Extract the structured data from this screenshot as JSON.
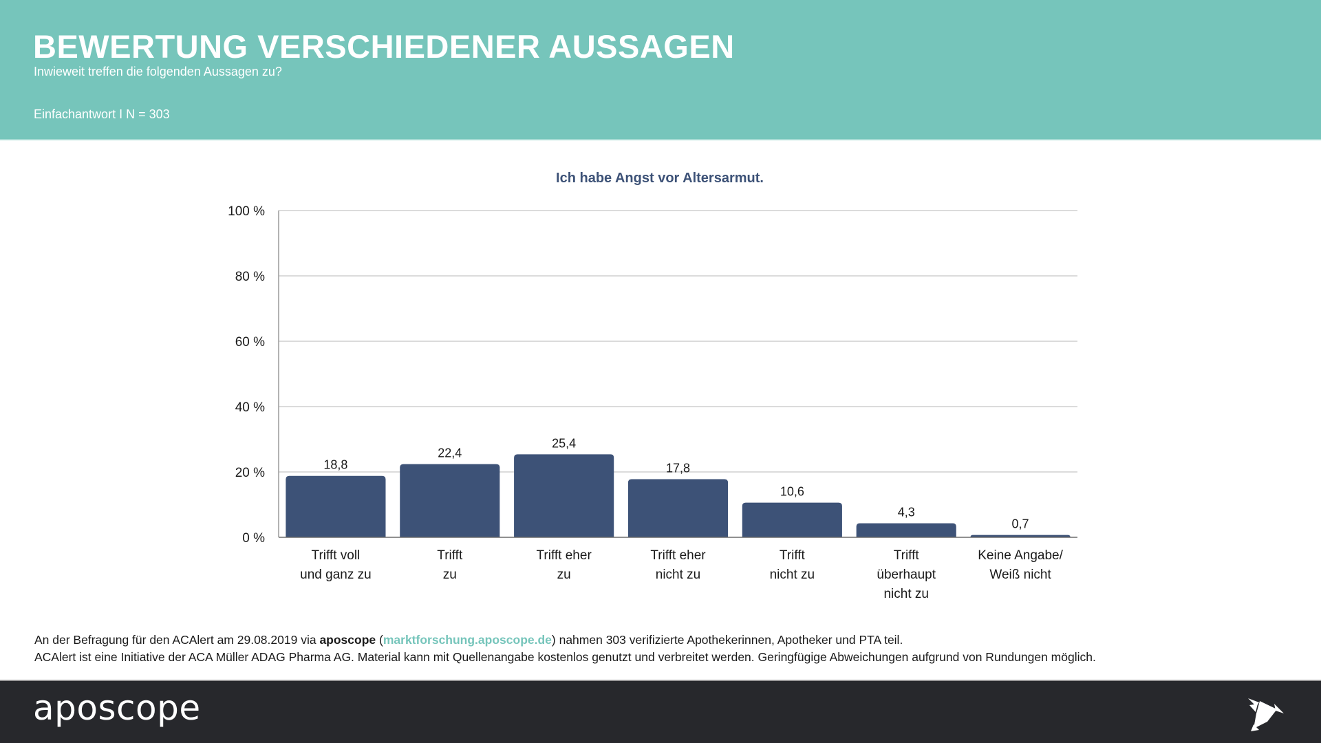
{
  "header": {
    "title": "BEWERTUNG VERSCHIEDENER AUSSAGEN",
    "subtitle": "Inwieweit treffen die folgenden Aussagen zu?",
    "meta": "Einfachantwort I N = 303"
  },
  "chart_data": {
    "type": "bar",
    "title": "Ich habe Angst vor Altersarmut.",
    "xlabel": "",
    "ylabel": "",
    "ylim": [
      0,
      100
    ],
    "yticks": [
      0,
      20,
      40,
      60,
      80,
      100
    ],
    "ytick_labels": [
      "0 %",
      "20 %",
      "40 %",
      "60 %",
      "80 %",
      "100 %"
    ],
    "grid": true,
    "legend": "none",
    "categories": [
      [
        "Trifft voll",
        "und ganz zu"
      ],
      [
        "Trifft",
        "zu"
      ],
      [
        "Trifft eher",
        "zu"
      ],
      [
        "Trifft eher",
        "nicht zu"
      ],
      [
        "Trifft",
        "nicht zu"
      ],
      [
        "Trifft",
        "überhaupt",
        "nicht zu"
      ],
      [
        "Keine Angabe/",
        "Weiß nicht"
      ]
    ],
    "values": [
      18.8,
      22.4,
      25.4,
      17.8,
      10.6,
      4.3,
      0.7
    ],
    "value_labels": [
      "18,8",
      "22,4",
      "25,4",
      "17,8",
      "10,6",
      "4,3",
      "0,7"
    ],
    "bar_color": "#3d5277"
  },
  "footnote": {
    "line1_pre": "An der Befragung für den ACAlert am 29.08.2019 via ",
    "line1_brand": "aposcope",
    "line1_open": " (",
    "line1_link": "marktforschung.aposcope.de",
    "line1_post": ") nahmen 303 verifizierte Apothekerinnen, Apotheker und PTA teil.",
    "line2": "ACAlert ist eine Initiative der ACA Müller ADAG Pharma AG. Material kann mit Quellenangabe kostenlos genutzt und verbreitet werden. Geringfügige Abweichungen aufgrund von Rundungen möglich."
  },
  "footer": {
    "brand": "aposcope",
    "logo_icon": "origami-bird-icon"
  },
  "colors": {
    "header_bg": "#76c5bb",
    "footer_bg": "#27282c",
    "accent": "#76c5bb",
    "bar": "#3d5277"
  }
}
